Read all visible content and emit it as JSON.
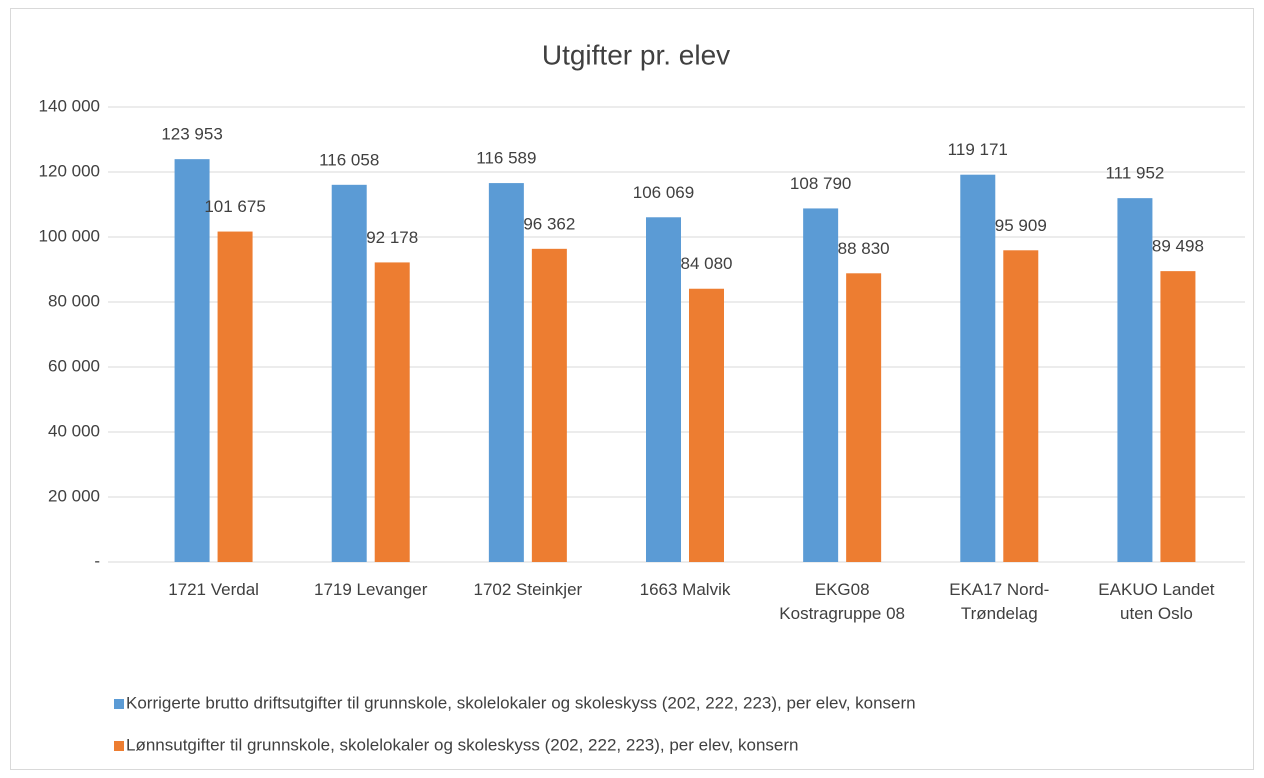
{
  "chart_data": {
    "type": "bar",
    "title": "Utgifter pr. elev",
    "categories": [
      "1721 Verdal",
      "1719 Levanger",
      "1702 Steinkjer",
      "1663 Malvik",
      "EKG08 Kostragruppe 08",
      "EKA17 Nord-Trøndelag",
      "EAKUO Landet uten Oslo"
    ],
    "series": [
      {
        "name": "Korrigerte brutto driftsutgifter til grunnskole, skolelokaler og skoleskyss (202, 222, 223), per elev, konsern",
        "color": "#5b9bd5",
        "values": [
          123953,
          116058,
          116589,
          106069,
          108790,
          119171,
          111952
        ],
        "value_labels": [
          "123 953",
          "116 058",
          "116 589",
          "106 069",
          "108 790",
          "119 171",
          "111 952"
        ]
      },
      {
        "name": "Lønnsutgifter til grunnskole, skolelokaler og skoleskyss (202, 222, 223), per elev, konsern",
        "color": "#ed7d31",
        "values": [
          101675,
          92178,
          96362,
          84080,
          88830,
          95909,
          89498
        ],
        "value_labels": [
          "101 675",
          "92 178",
          "96 362",
          "84 080",
          "88 830",
          "95 909",
          "89 498"
        ]
      }
    ],
    "ylim": [
      0,
      140000
    ],
    "yticks": [
      {
        "value": 0,
        "label": "-"
      },
      {
        "value": 20000,
        "label": "20 000"
      },
      {
        "value": 40000,
        "label": "40 000"
      },
      {
        "value": 60000,
        "label": "60 000"
      },
      {
        "value": 80000,
        "label": "80 000"
      },
      {
        "value": 100000,
        "label": "100 000"
      },
      {
        "value": 120000,
        "label": "120 000"
      },
      {
        "value": 140000,
        "label": "140 000"
      }
    ],
    "grid": true,
    "legend": "bottom"
  }
}
